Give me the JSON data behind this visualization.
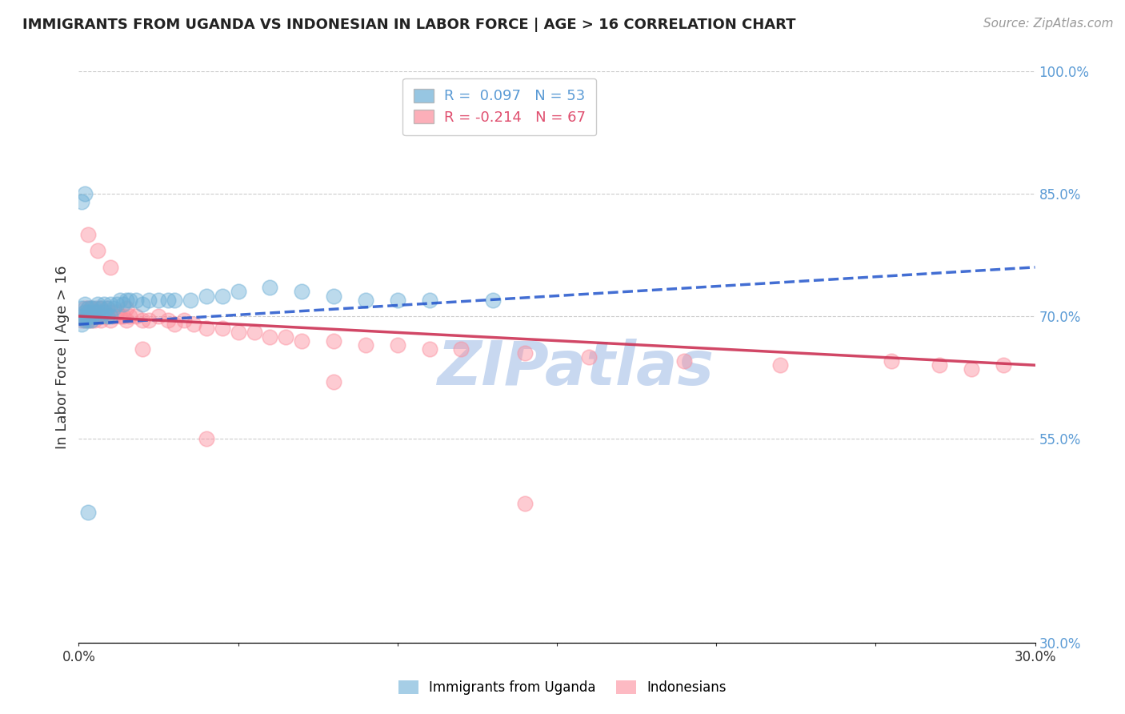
{
  "title": "IMMIGRANTS FROM UGANDA VS INDONESIAN IN LABOR FORCE | AGE > 16 CORRELATION CHART",
  "source": "Source: ZipAtlas.com",
  "xlabel": "",
  "ylabel": "In Labor Force | Age > 16",
  "xmin": 0.0,
  "xmax": 0.3,
  "ymin": 0.3,
  "ymax": 1.0,
  "yticks": [
    1.0,
    0.85,
    0.7,
    0.55,
    0.3
  ],
  "ytick_labels": [
    "100.0%",
    "85.0%",
    "70.0%",
    "55.0%",
    "30.0%"
  ],
  "xticks": [
    0.0,
    0.05,
    0.1,
    0.15,
    0.2,
    0.25,
    0.3
  ],
  "xtick_labels": [
    "0.0%",
    "",
    "",
    "",
    "",
    "",
    "30.0%"
  ],
  "uganda_R": 0.097,
  "uganda_N": 53,
  "indonesian_R": -0.214,
  "indonesian_N": 67,
  "uganda_color": "#6baed6",
  "indonesian_color": "#fc8d9c",
  "uganda_trend_color": "#2255cc",
  "indonesian_trend_color": "#cc3355",
  "background_color": "#ffffff",
  "grid_color": "#cccccc",
  "watermark_text": "ZIPatlas",
  "watermark_color": "#c8d8f0",
  "uganda_x": [
    0.001,
    0.001,
    0.001,
    0.002,
    0.002,
    0.002,
    0.002,
    0.003,
    0.003,
    0.003,
    0.003,
    0.004,
    0.004,
    0.004,
    0.005,
    0.005,
    0.005,
    0.006,
    0.006,
    0.007,
    0.007,
    0.008,
    0.008,
    0.009,
    0.009,
    0.01,
    0.01,
    0.011,
    0.012,
    0.013,
    0.014,
    0.015,
    0.016,
    0.018,
    0.02,
    0.022,
    0.025,
    0.028,
    0.03,
    0.035,
    0.04,
    0.045,
    0.05,
    0.06,
    0.07,
    0.08,
    0.09,
    0.1,
    0.11,
    0.13,
    0.001,
    0.002,
    0.003
  ],
  "uganda_y": [
    0.7,
    0.71,
    0.69,
    0.705,
    0.695,
    0.715,
    0.7,
    0.7,
    0.71,
    0.695,
    0.705,
    0.71,
    0.7,
    0.695,
    0.71,
    0.705,
    0.7,
    0.715,
    0.705,
    0.71,
    0.7,
    0.715,
    0.705,
    0.71,
    0.7,
    0.715,
    0.7,
    0.71,
    0.715,
    0.72,
    0.715,
    0.72,
    0.72,
    0.72,
    0.715,
    0.72,
    0.72,
    0.72,
    0.72,
    0.72,
    0.725,
    0.725,
    0.73,
    0.735,
    0.73,
    0.725,
    0.72,
    0.72,
    0.72,
    0.72,
    0.84,
    0.85,
    0.46
  ],
  "indonesian_x": [
    0.001,
    0.001,
    0.002,
    0.002,
    0.002,
    0.003,
    0.003,
    0.003,
    0.004,
    0.004,
    0.004,
    0.005,
    0.005,
    0.005,
    0.006,
    0.006,
    0.007,
    0.007,
    0.007,
    0.008,
    0.008,
    0.009,
    0.009,
    0.01,
    0.01,
    0.011,
    0.012,
    0.013,
    0.014,
    0.015,
    0.015,
    0.016,
    0.018,
    0.02,
    0.022,
    0.025,
    0.028,
    0.03,
    0.033,
    0.036,
    0.04,
    0.045,
    0.05,
    0.055,
    0.06,
    0.065,
    0.07,
    0.08,
    0.09,
    0.1,
    0.11,
    0.12,
    0.14,
    0.16,
    0.19,
    0.22,
    0.255,
    0.27,
    0.28,
    0.29,
    0.003,
    0.006,
    0.01,
    0.02,
    0.04,
    0.08,
    0.14
  ],
  "indonesian_y": [
    0.7,
    0.695,
    0.705,
    0.695,
    0.71,
    0.7,
    0.695,
    0.71,
    0.705,
    0.695,
    0.71,
    0.705,
    0.7,
    0.695,
    0.71,
    0.7,
    0.705,
    0.695,
    0.71,
    0.705,
    0.7,
    0.71,
    0.7,
    0.705,
    0.695,
    0.7,
    0.705,
    0.7,
    0.7,
    0.71,
    0.695,
    0.7,
    0.7,
    0.695,
    0.695,
    0.7,
    0.695,
    0.69,
    0.695,
    0.69,
    0.685,
    0.685,
    0.68,
    0.68,
    0.675,
    0.675,
    0.67,
    0.67,
    0.665,
    0.665,
    0.66,
    0.66,
    0.655,
    0.65,
    0.645,
    0.64,
    0.645,
    0.64,
    0.635,
    0.64,
    0.8,
    0.78,
    0.76,
    0.66,
    0.55,
    0.62,
    0.47
  ],
  "uganda_trend_x0": 0.0,
  "uganda_trend_y0": 0.69,
  "uganda_trend_x1": 0.3,
  "uganda_trend_y1": 0.76,
  "indo_trend_x0": 0.0,
  "indo_trend_y0": 0.7,
  "indo_trend_x1": 0.3,
  "indo_trend_y1": 0.64
}
